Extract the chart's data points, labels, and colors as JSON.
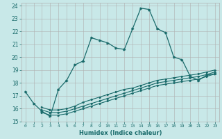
{
  "xlabel": "Humidex (Indice chaleur)",
  "bg_color": "#c8e8e8",
  "grid_color": "#b0b0b0",
  "line_color": "#1a6b6b",
  "xlim": [
    -0.5,
    23.5
  ],
  "ylim": [
    15,
    24.2
  ],
  "xticks": [
    0,
    1,
    2,
    3,
    4,
    5,
    6,
    7,
    8,
    9,
    10,
    11,
    12,
    13,
    14,
    15,
    16,
    17,
    18,
    19,
    20,
    21,
    22,
    23
  ],
  "yticks": [
    15,
    16,
    17,
    18,
    19,
    20,
    21,
    22,
    23,
    24
  ],
  "series1_x": [
    0,
    1,
    2,
    3,
    4,
    5,
    6,
    7,
    8,
    9,
    10,
    11,
    12,
    13,
    14,
    15,
    16,
    17,
    18,
    19,
    20,
    21,
    22,
    23
  ],
  "series1_y": [
    17.3,
    16.4,
    15.8,
    15.4,
    17.5,
    18.2,
    19.4,
    19.7,
    21.5,
    21.3,
    21.1,
    20.7,
    20.6,
    22.2,
    23.8,
    23.7,
    22.2,
    21.9,
    20.0,
    19.8,
    18.5,
    18.2,
    18.6,
    18.7
  ],
  "series2_x": [
    2,
    3,
    4,
    5,
    6,
    7,
    8,
    9,
    10,
    11,
    12,
    13,
    14,
    15,
    16,
    17,
    18,
    19,
    20,
    21,
    22,
    23
  ],
  "series2_y": [
    15.7,
    15.5,
    15.5,
    15.6,
    15.8,
    16.0,
    16.2,
    16.4,
    16.6,
    16.8,
    17.0,
    17.2,
    17.4,
    17.6,
    17.8,
    17.9,
    18.0,
    18.1,
    18.2,
    18.3,
    18.5,
    18.7
  ],
  "series3_x": [
    2,
    3,
    4,
    5,
    6,
    7,
    8,
    9,
    10,
    11,
    12,
    13,
    14,
    15,
    16,
    17,
    18,
    19,
    20,
    21,
    22,
    23
  ],
  "series3_y": [
    15.9,
    15.7,
    15.7,
    15.8,
    16.0,
    16.2,
    16.4,
    16.6,
    16.8,
    17.0,
    17.2,
    17.4,
    17.6,
    17.8,
    18.0,
    18.1,
    18.2,
    18.3,
    18.4,
    18.5,
    18.65,
    18.85
  ],
  "series4_x": [
    2,
    3,
    4,
    5,
    6,
    7,
    8,
    9,
    10,
    11,
    12,
    13,
    14,
    15,
    16,
    17,
    18,
    19,
    20,
    21,
    22,
    23
  ],
  "series4_y": [
    16.1,
    15.9,
    15.9,
    16.0,
    16.2,
    16.5,
    16.7,
    16.9,
    17.1,
    17.3,
    17.5,
    17.6,
    17.8,
    18.0,
    18.2,
    18.3,
    18.4,
    18.5,
    18.6,
    18.7,
    18.85,
    19.0
  ]
}
